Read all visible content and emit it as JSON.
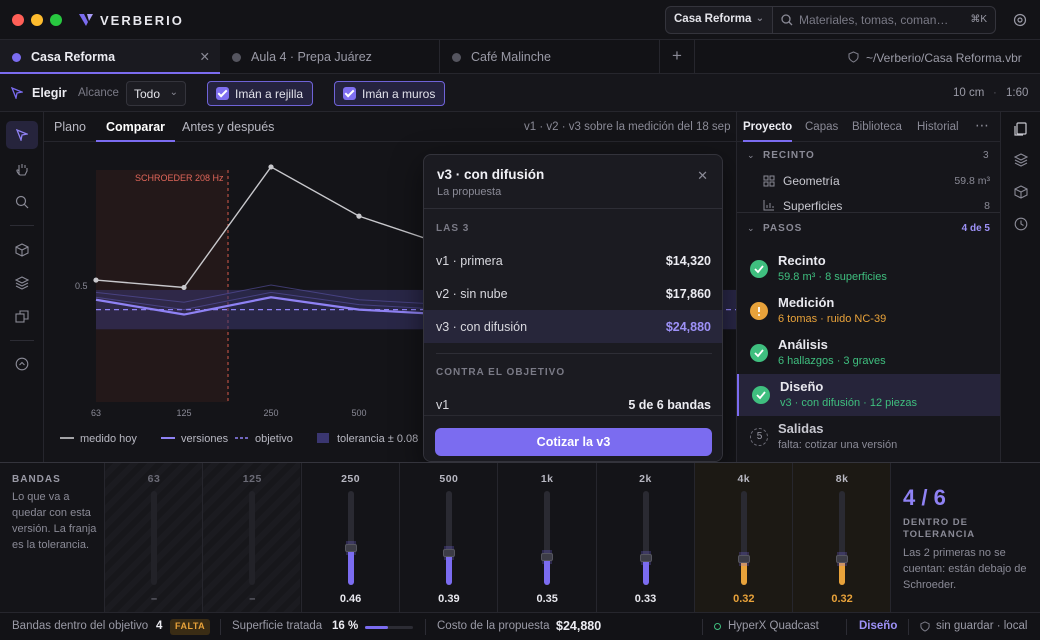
{
  "app": {
    "name": "VERBERIO",
    "project": "Casa Reforma",
    "search_placeholder": "Materiales, tomas, coman…",
    "search_shortcut": "⌘K"
  },
  "tabs": [
    {
      "label": "Casa Reforma",
      "active": true,
      "color": "#7b6cf0"
    },
    {
      "label": "Aula 4 · Prepa Juárez",
      "active": false,
      "color": "#55555f"
    },
    {
      "label": "Café Malinche",
      "active": false,
      "color": "#55555f"
    }
  ],
  "file_path": "~/Verberio/Casa Reforma.vbr",
  "toolbar": {
    "tool": "Elegir",
    "scope_label": "Alcance",
    "scope_value": "Todo",
    "snap_grid": "Imán a rejilla",
    "snap_walls": "Imán a muros",
    "scale": "10 cm",
    "ratio": "1:60"
  },
  "view_tabs": [
    "Plano",
    "Comparar",
    "Antes y después"
  ],
  "view_caption": "v1 · v2 · v3 sobre la medición del 18 sep",
  "chart_data": {
    "type": "line",
    "categories": [
      "63",
      "125",
      "250",
      "500",
      "1k"
    ],
    "ytick": "0.5",
    "annotation": "SCHROEDER 208 Hz",
    "series": [
      {
        "name": "medido hoy",
        "values": [
          0.52,
          0.49,
          0.98,
          0.78,
          0.66
        ]
      },
      {
        "name": "versiones",
        "values": [
          0.44,
          0.38,
          0.45,
          0.4,
          0.38
        ]
      },
      {
        "name": "objetivo",
        "values": [
          0.4,
          0.4,
          0.4,
          0.4,
          0.4
        ]
      }
    ],
    "tolerance": 0.08,
    "legend": [
      "medido hoy",
      "versiones",
      "objetivo",
      "tolerancia ± 0.08"
    ]
  },
  "popover": {
    "title": "v3 · con difusión",
    "subtitle": "La propuesta",
    "section1": "LAS 3",
    "rows": [
      {
        "label": "v1 · primera",
        "value": "$14,320"
      },
      {
        "label": "v2 · sin nube",
        "value": "$17,860"
      },
      {
        "label": "v3 · con difusión",
        "value": "$24,880"
      }
    ],
    "section2": "CONTRA EL OBJETIVO",
    "target_row": {
      "label": "v1",
      "value": "5 de 6 bandas"
    },
    "cta": "Cotizar la v3"
  },
  "panel": {
    "tabs": [
      "Proyecto",
      "Capas",
      "Biblioteca",
      "Historial"
    ],
    "recinto": {
      "label": "RECINTO",
      "count": "3",
      "items": [
        {
          "label": "Geometría",
          "value": "59.8 m³"
        },
        {
          "label": "Superficies",
          "value": "8"
        }
      ]
    },
    "pasos": {
      "label": "PASOS",
      "progress": "4 de 5"
    },
    "steps": [
      {
        "title": "Recinto",
        "sub": "59.8 m³ · 8 superficies",
        "state": "done"
      },
      {
        "title": "Medición",
        "sub": "6 tomas · ruido NC-39",
        "state": "warn"
      },
      {
        "title": "Análisis",
        "sub": "6 hallazgos · 3 graves",
        "state": "done"
      },
      {
        "title": "Diseño",
        "sub": "v3 · con difusión · 12 piezas",
        "state": "done"
      },
      {
        "title": "Salidas",
        "sub": "falta: cotizar una versión",
        "state": "todo",
        "num": "5"
      }
    ]
  },
  "bands": {
    "title": "BANDAS",
    "desc": "Lo que va a quedar con esta versión. La franja es la tolerancia.",
    "items": [
      {
        "label": "63",
        "value": "–",
        "level": 0,
        "state": "off"
      },
      {
        "label": "125",
        "value": "–",
        "level": 0,
        "state": "off"
      },
      {
        "label": "250",
        "value": "0.46",
        "level": 0.46,
        "state": "ok"
      },
      {
        "label": "500",
        "value": "0.39",
        "level": 0.39,
        "state": "ok"
      },
      {
        "label": "1k",
        "value": "0.35",
        "level": 0.35,
        "state": "ok"
      },
      {
        "label": "2k",
        "value": "0.33",
        "level": 0.33,
        "state": "ok"
      },
      {
        "label": "4k",
        "value": "0.32",
        "level": 0.32,
        "state": "warn"
      },
      {
        "label": "8k",
        "value": "0.32",
        "level": 0.32,
        "state": "warn"
      }
    ],
    "summary": {
      "value": "4 / 6",
      "label": "DENTRO DE TOLERANCIA",
      "note": "Las 2 primeras no se cuentan: están debajo de Schroeder."
    }
  },
  "status": {
    "bands_label": "Bandas dentro del objetivo",
    "bands_value": "4",
    "bands_badge": "FALTA",
    "surface_label": "Superficie tratada",
    "surface_value": "16 %",
    "surface_level": 0.16,
    "cost_label": "Costo de la propuesta",
    "cost_value": "$24,880",
    "device": "HyperX Quadcast",
    "mode": "Diseño",
    "save": "sin guardar · local"
  },
  "colors": {
    "accent": "#7b6cf0",
    "ok": "#3fbf7f",
    "warn": "#e8a23a",
    "gray_line": "#c8c8cc"
  }
}
